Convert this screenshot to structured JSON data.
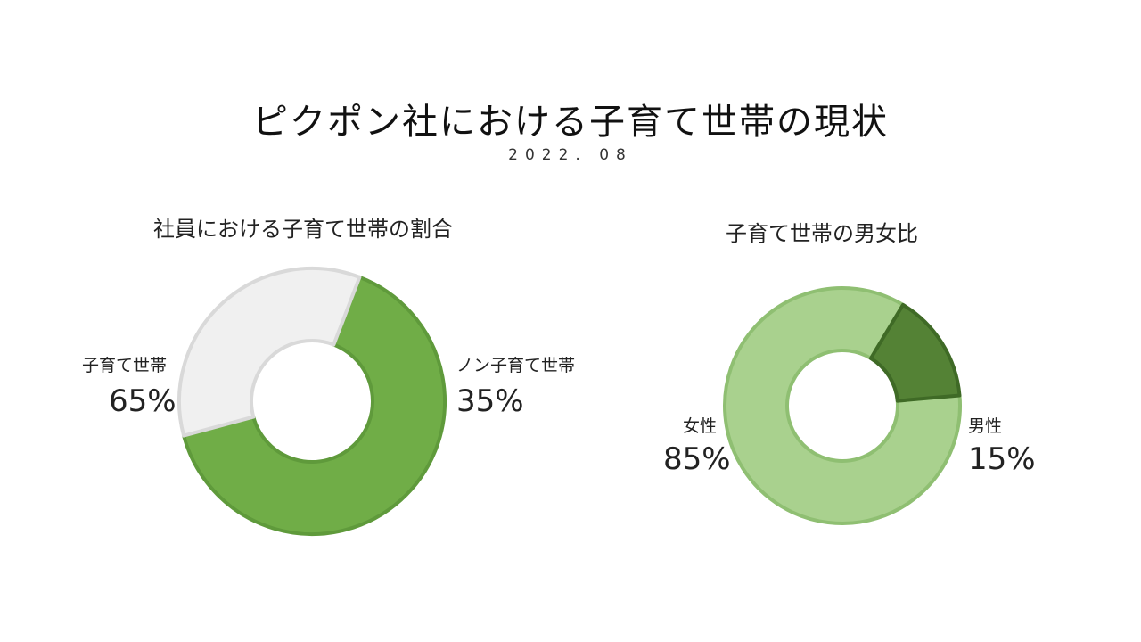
{
  "title": "ピクポン社における子育て世帯の現状",
  "date": "2022. 08",
  "chart_data": [
    {
      "type": "pie",
      "title": "社員における子育て世帯の割合",
      "labels": [
        "子育て世帯",
        "ノン子育て世帯"
      ],
      "values": [
        65,
        35
      ],
      "display_values": [
        "65%",
        "35%"
      ],
      "colors": [
        "#70ad47",
        "#f0f0f0"
      ],
      "edge_colors": [
        "#5f9a3b",
        "#d9d9d9"
      ]
    },
    {
      "type": "pie",
      "title": "子育て世帯の男女比",
      "labels": [
        "女性",
        "男性"
      ],
      "values": [
        85,
        15
      ],
      "display_values": [
        "85%",
        "15%"
      ],
      "colors": [
        "#a9d18e",
        "#548235"
      ],
      "edge_colors": [
        "#8fbf72",
        "#3f6a26"
      ]
    }
  ]
}
